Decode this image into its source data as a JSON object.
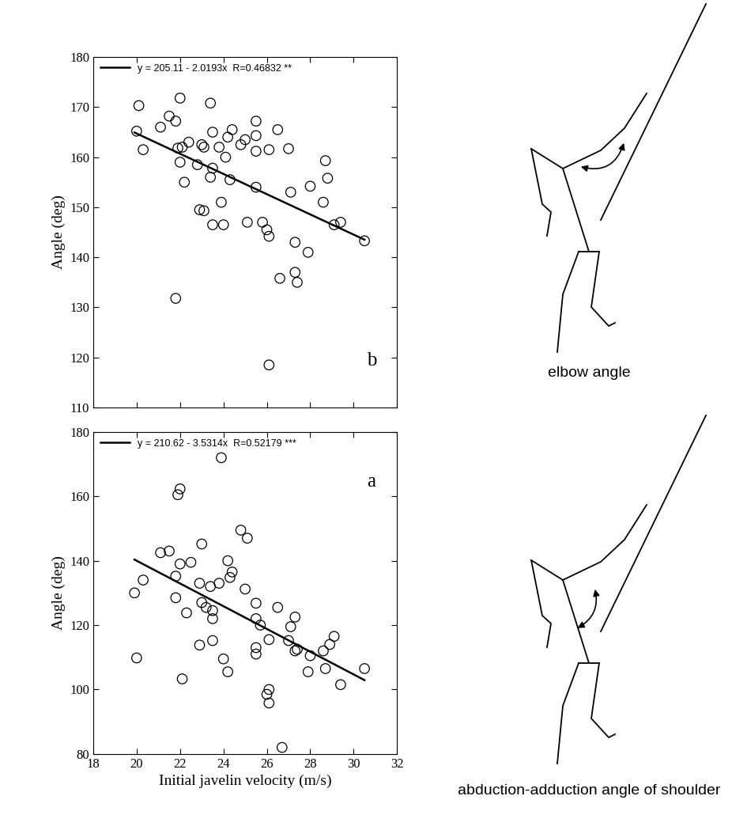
{
  "chart_data": [
    {
      "type": "scatter",
      "annotation": "b",
      "y_label": "Angle (deg)",
      "tick_labels": "y",
      "legend": "upper left",
      "xlim": [
        18,
        32
      ],
      "xticks": [
        18,
        20,
        22,
        24,
        26,
        28,
        30,
        32
      ],
      "ylim": [
        110,
        180
      ],
      "yticks": [
        110,
        120,
        130,
        140,
        150,
        160,
        170,
        180
      ],
      "series": [
        {
          "name": "y = 205.11 - 2.0193x  R=0.46832 **",
          "type": "line",
          "line_style": "solid",
          "color": "#000000",
          "x": [
            19.9,
            30.5
          ],
          "values": [
            164.93,
            143.52
          ]
        },
        {
          "type": "scatter",
          "marker": "o",
          "color": "#000000",
          "x": [
            20.0,
            20.1,
            20.3,
            21.1,
            21.5,
            21.8,
            22.0,
            21.9,
            22.0,
            22.1,
            22.2,
            22.4,
            22.8,
            23.0,
            23.1,
            22.9,
            23.1,
            23.4,
            23.5,
            23.5,
            23.4,
            23.5,
            23.9,
            23.8,
            24.0,
            24.1,
            24.2,
            24.3,
            24.4,
            24.8,
            25.0,
            25.1,
            25.5,
            25.5,
            25.5,
            25.5,
            25.8,
            26.0,
            26.1,
            26.1,
            26.5,
            26.6,
            27.0,
            27.1,
            27.3,
            27.3,
            27.4,
            27.9,
            28.0,
            28.6,
            28.7,
            28.8,
            29.1,
            29.4,
            30.5,
            21.8,
            26.1
          ],
          "values": [
            165.2,
            170.3,
            161.5,
            166,
            168.2,
            167.2,
            171.8,
            161.8,
            159,
            162,
            155,
            163,
            158.5,
            162.5,
            162,
            149.5,
            149.3,
            170.8,
            165,
            157.8,
            156,
            146.5,
            151,
            162,
            146.5,
            160,
            164,
            155.5,
            165.5,
            162.5,
            163.5,
            147,
            167.2,
            164.3,
            161.2,
            154,
            147,
            145.5,
            144.2,
            161.5,
            165.5,
            135.8,
            161.7,
            153,
            143,
            137,
            135,
            141,
            154.2,
            151,
            159.3,
            155.8,
            146.5,
            147,
            143.3,
            131.8,
            118.5
          ]
        }
      ]
    },
    {
      "type": "scatter",
      "annotation": "a",
      "x_label": "Initial javelin velocity (m/s)",
      "y_label": "Angle (deg)",
      "legend": "upper left",
      "xlim": [
        18,
        32
      ],
      "xticks": [
        18,
        20,
        22,
        24,
        26,
        28,
        30,
        32
      ],
      "ylim": [
        80,
        180
      ],
      "yticks": [
        80,
        100,
        120,
        140,
        160,
        180
      ],
      "series": [
        {
          "name": "y = 210.62 - 3.5314x  R=0.52179 ***",
          "type": "line",
          "line_style": "solid",
          "color": "#000000",
          "x": [
            19.9,
            30.5
          ],
          "values": [
            140.35,
            102.91
          ]
        },
        {
          "type": "scatter",
          "marker": "o",
          "color": "#000000",
          "x": [
            19.9,
            20.0,
            20.3,
            21.1,
            21.5,
            21.8,
            21.8,
            21.9,
            22.0,
            22.0,
            22.1,
            22.3,
            22.5,
            22.9,
            22.9,
            23.0,
            23.0,
            23.2,
            23.4,
            23.5,
            23.5,
            23.5,
            23.8,
            23.9,
            24.0,
            24.2,
            24.2,
            24.3,
            24.4,
            24.8,
            25.0,
            25.1,
            25.5,
            25.5,
            25.5,
            25.5,
            25.7,
            26.0,
            26.1,
            26.1,
            26.1,
            26.5,
            26.7,
            27.0,
            27.1,
            27.3,
            27.3,
            27.4,
            27.9,
            28.0,
            28.6,
            28.7,
            28.9,
            29.1,
            29.4,
            30.5
          ],
          "values": [
            130,
            109.8,
            134,
            142.5,
            143,
            128.5,
            135.2,
            160.5,
            162.3,
            139,
            103.3,
            123.8,
            139.5,
            113.8,
            133,
            145.2,
            127,
            125.5,
            132,
            124.5,
            122,
            115.2,
            133,
            172,
            109.5,
            140,
            105.5,
            134.8,
            136.5,
            149.5,
            131.2,
            147,
            126.8,
            122,
            113,
            111,
            120,
            98.5,
            100,
            115.5,
            95.8,
            125.5,
            82,
            115.2,
            119.5,
            112,
            122.5,
            112.5,
            105.5,
            110.5,
            112,
            106.5,
            114,
            116.5,
            101.5,
            106.5
          ]
        }
      ]
    }
  ],
  "diagram_labels": [
    "elbow angle",
    "abduction-adduction angle of shoulder"
  ]
}
